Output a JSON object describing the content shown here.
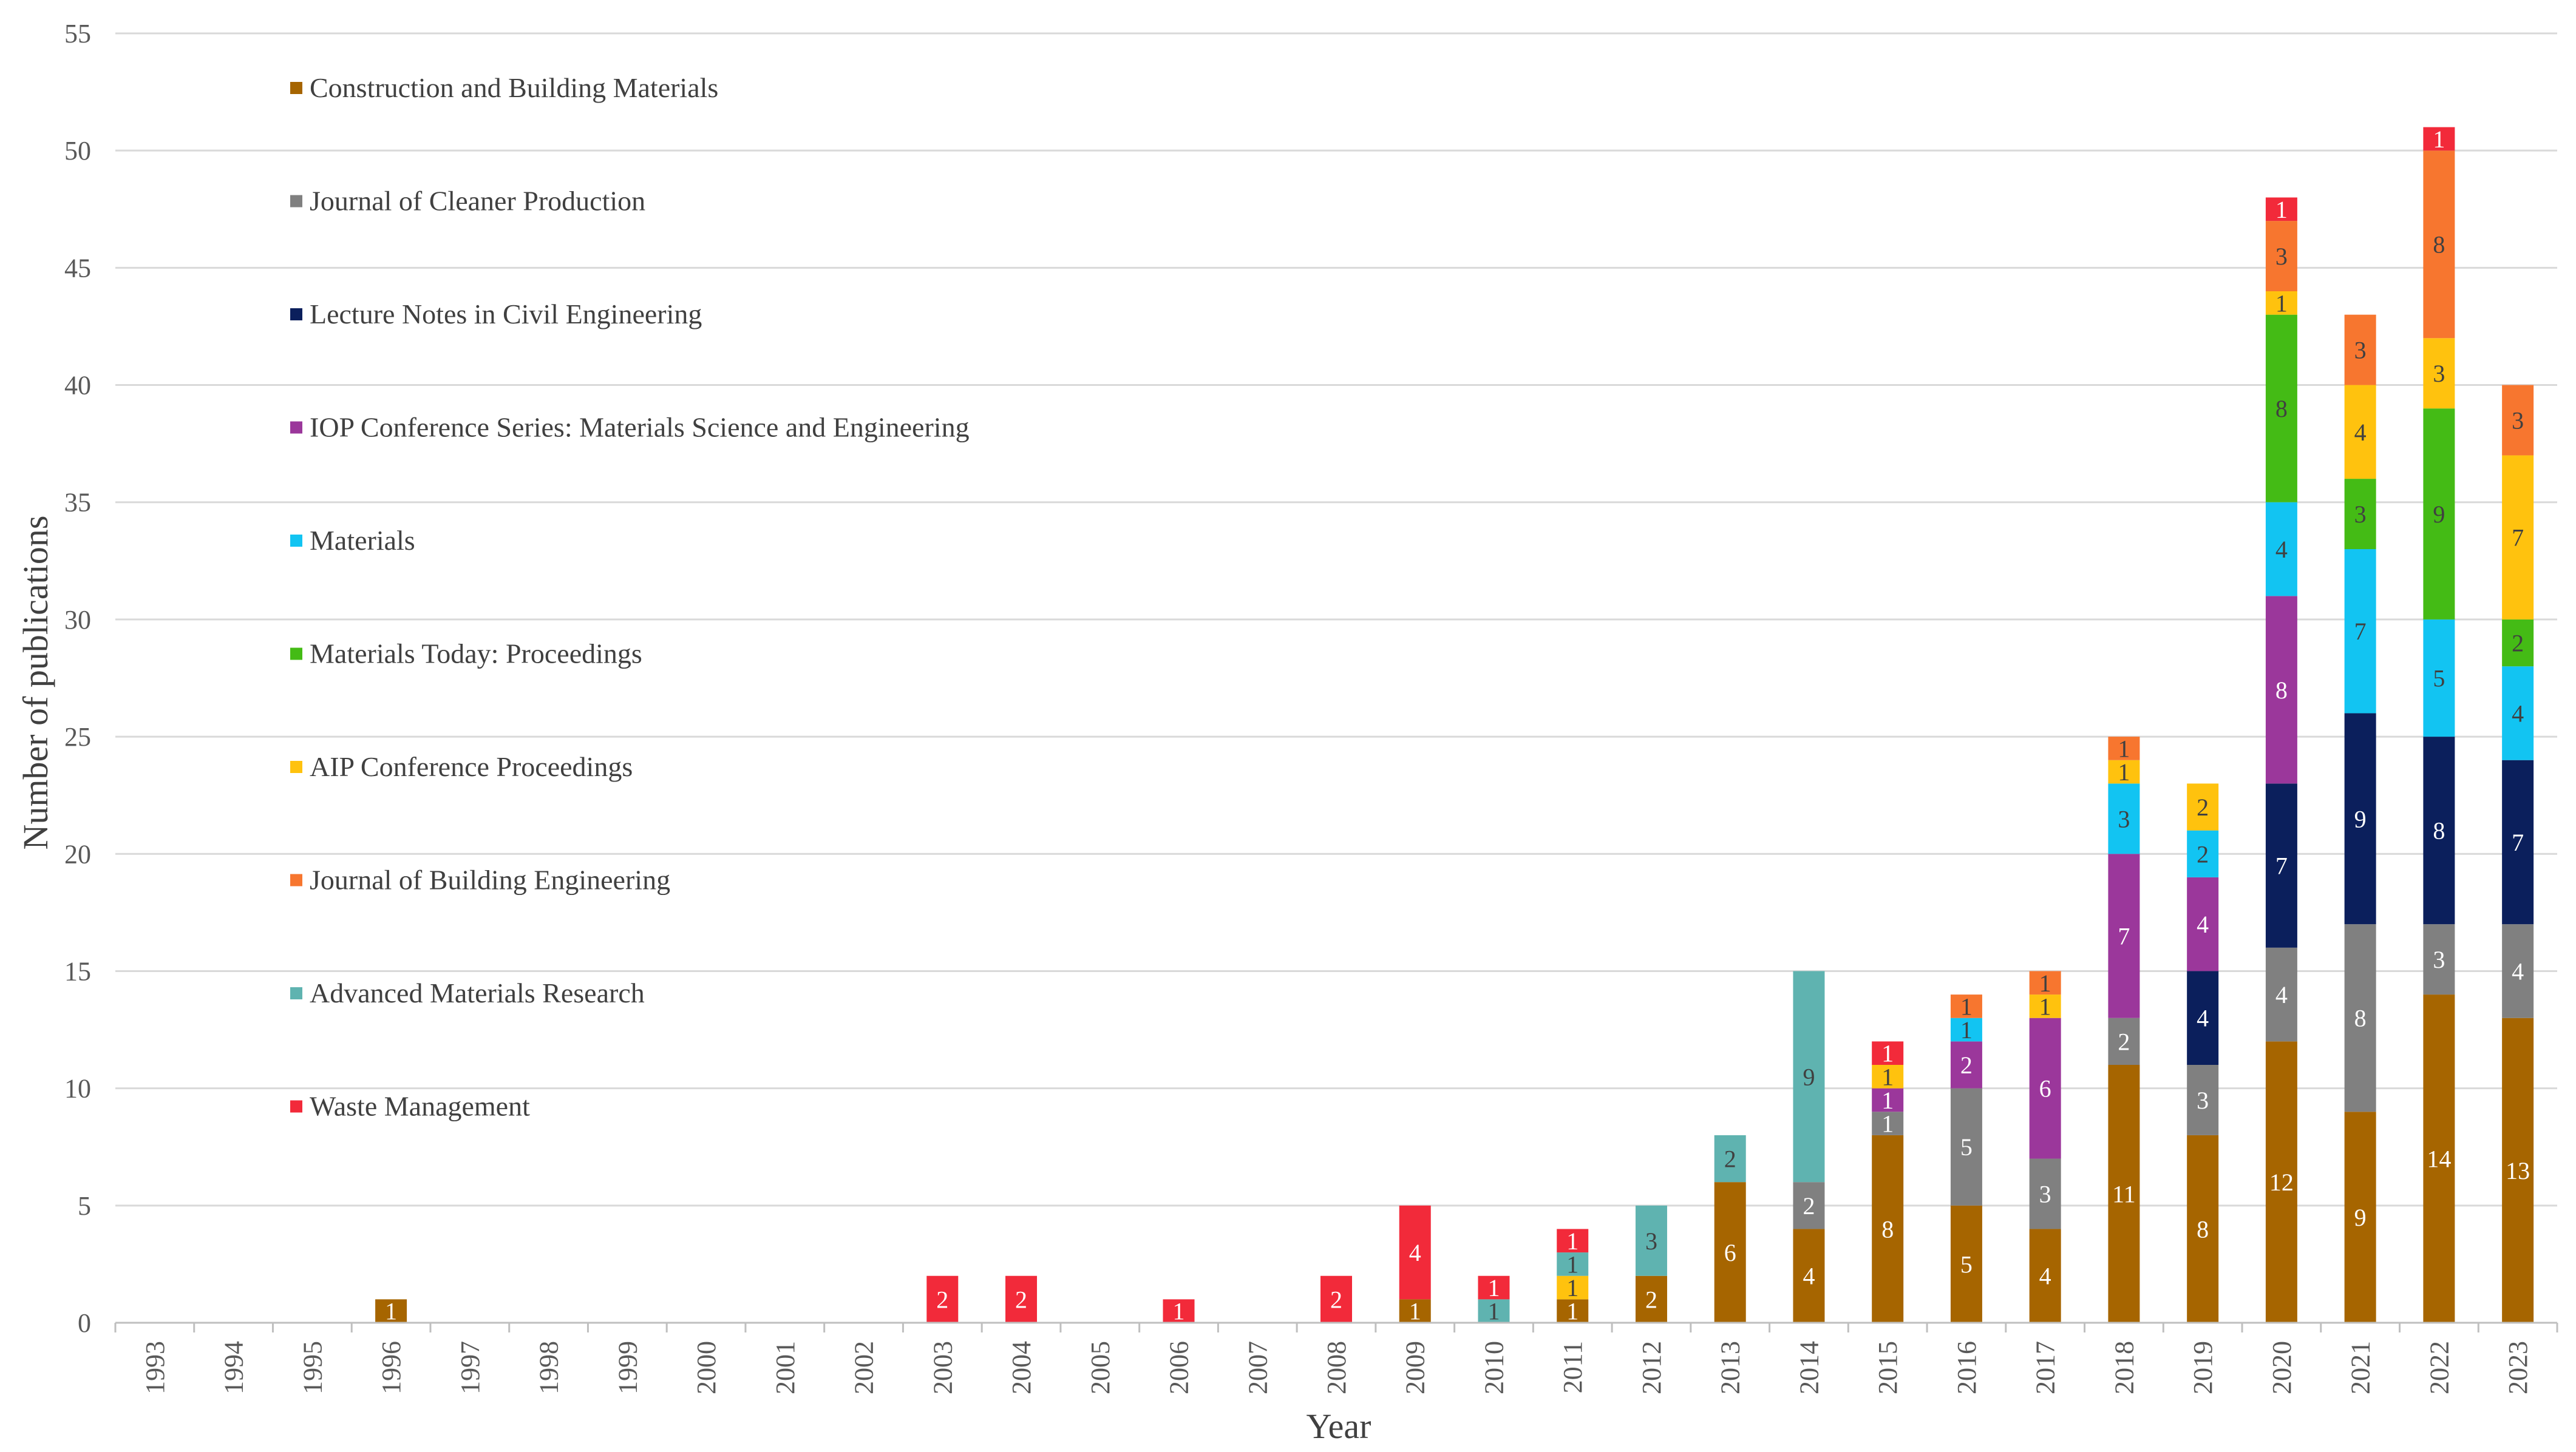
{
  "chart_data": {
    "type": "bar",
    "stacked": true,
    "title": "",
    "xlabel": "Year",
    "ylabel": "Number of publications",
    "ylim": [
      0,
      55
    ],
    "ytick_step": 5,
    "grid": true,
    "legend_position": "top-left",
    "categories": [
      "1993",
      "1994",
      "1995",
      "1996",
      "1997",
      "1998",
      "1999",
      "2000",
      "2001",
      "2002",
      "2003",
      "2004",
      "2005",
      "2006",
      "2007",
      "2008",
      "2009",
      "2010",
      "2011",
      "2012",
      "2013",
      "2014",
      "2015",
      "2016",
      "2017",
      "2018",
      "2019",
      "2020",
      "2021",
      "2022",
      "2023"
    ],
    "series": [
      {
        "name": "Construction and Building Materials",
        "color": "#A66500",
        "label_color": "#ffffff",
        "values": [
          0,
          0,
          0,
          1,
          0,
          0,
          0,
          0,
          0,
          0,
          0,
          0,
          0,
          0,
          0,
          0,
          1,
          0,
          1,
          2,
          6,
          4,
          8,
          5,
          4,
          11,
          8,
          12,
          9,
          14,
          13
        ]
      },
      {
        "name": "Journal of Cleaner Production",
        "color": "#808080",
        "label_color": "#ffffff",
        "values": [
          0,
          0,
          0,
          0,
          0,
          0,
          0,
          0,
          0,
          0,
          0,
          0,
          0,
          0,
          0,
          0,
          0,
          0,
          0,
          0,
          0,
          2,
          1,
          5,
          3,
          2,
          3,
          4,
          8,
          3,
          4
        ]
      },
      {
        "name": "Lecture Notes in Civil Engineering",
        "color": "#0B1F5C",
        "label_color": "#ffffff",
        "values": [
          0,
          0,
          0,
          0,
          0,
          0,
          0,
          0,
          0,
          0,
          0,
          0,
          0,
          0,
          0,
          0,
          0,
          0,
          0,
          0,
          0,
          0,
          0,
          0,
          0,
          0,
          4,
          7,
          9,
          8,
          7
        ]
      },
      {
        "name": "IOP Conference Series: Materials Science and Engineering",
        "color": "#9B379B",
        "label_color": "#ffffff",
        "values": [
          0,
          0,
          0,
          0,
          0,
          0,
          0,
          0,
          0,
          0,
          0,
          0,
          0,
          0,
          0,
          0,
          0,
          0,
          0,
          0,
          0,
          0,
          1,
          2,
          6,
          7,
          4,
          8,
          0,
          0,
          0
        ]
      },
      {
        "name": "Materials",
        "color": "#12C4F2",
        "label_color": "#404040",
        "values": [
          0,
          0,
          0,
          0,
          0,
          0,
          0,
          0,
          0,
          0,
          0,
          0,
          0,
          0,
          0,
          0,
          0,
          0,
          0,
          0,
          0,
          0,
          0,
          1,
          0,
          3,
          2,
          4,
          7,
          5,
          4
        ]
      },
      {
        "name": "Materials Today: Proceedings",
        "color": "#44BB15",
        "label_color": "#404040",
        "values": [
          0,
          0,
          0,
          0,
          0,
          0,
          0,
          0,
          0,
          0,
          0,
          0,
          0,
          0,
          0,
          0,
          0,
          0,
          0,
          0,
          0,
          0,
          0,
          0,
          0,
          0,
          0,
          8,
          3,
          9,
          2
        ]
      },
      {
        "name": "AIP Conference Proceedings",
        "color": "#FFC20E",
        "label_color": "#404040",
        "values": [
          0,
          0,
          0,
          0,
          0,
          0,
          0,
          0,
          0,
          0,
          0,
          0,
          0,
          0,
          0,
          0,
          0,
          0,
          1,
          0,
          0,
          0,
          1,
          0,
          1,
          1,
          2,
          1,
          4,
          3,
          7
        ]
      },
      {
        "name": "Journal of Building Engineering",
        "color": "#F7762F",
        "label_color": "#404040",
        "values": [
          0,
          0,
          0,
          0,
          0,
          0,
          0,
          0,
          0,
          0,
          0,
          0,
          0,
          0,
          0,
          0,
          0,
          0,
          0,
          0,
          0,
          0,
          0,
          1,
          1,
          1,
          0,
          3,
          3,
          8,
          3
        ]
      },
      {
        "name": "Advanced Materials Research",
        "color": "#5FB3B0",
        "label_color": "#404040",
        "values": [
          0,
          0,
          0,
          0,
          0,
          0,
          0,
          0,
          0,
          0,
          0,
          0,
          0,
          0,
          0,
          0,
          0,
          1,
          1,
          3,
          2,
          9,
          0,
          0,
          0,
          0,
          0,
          0,
          0,
          0,
          0
        ]
      },
      {
        "name": "Waste Management",
        "color": "#F22A3A",
        "label_color": "#ffffff",
        "values": [
          0,
          0,
          0,
          0,
          0,
          0,
          0,
          0,
          0,
          0,
          2,
          2,
          0,
          1,
          0,
          2,
          4,
          1,
          1,
          0,
          0,
          0,
          1,
          0,
          0,
          0,
          0,
          1,
          0,
          1,
          0
        ]
      }
    ]
  }
}
